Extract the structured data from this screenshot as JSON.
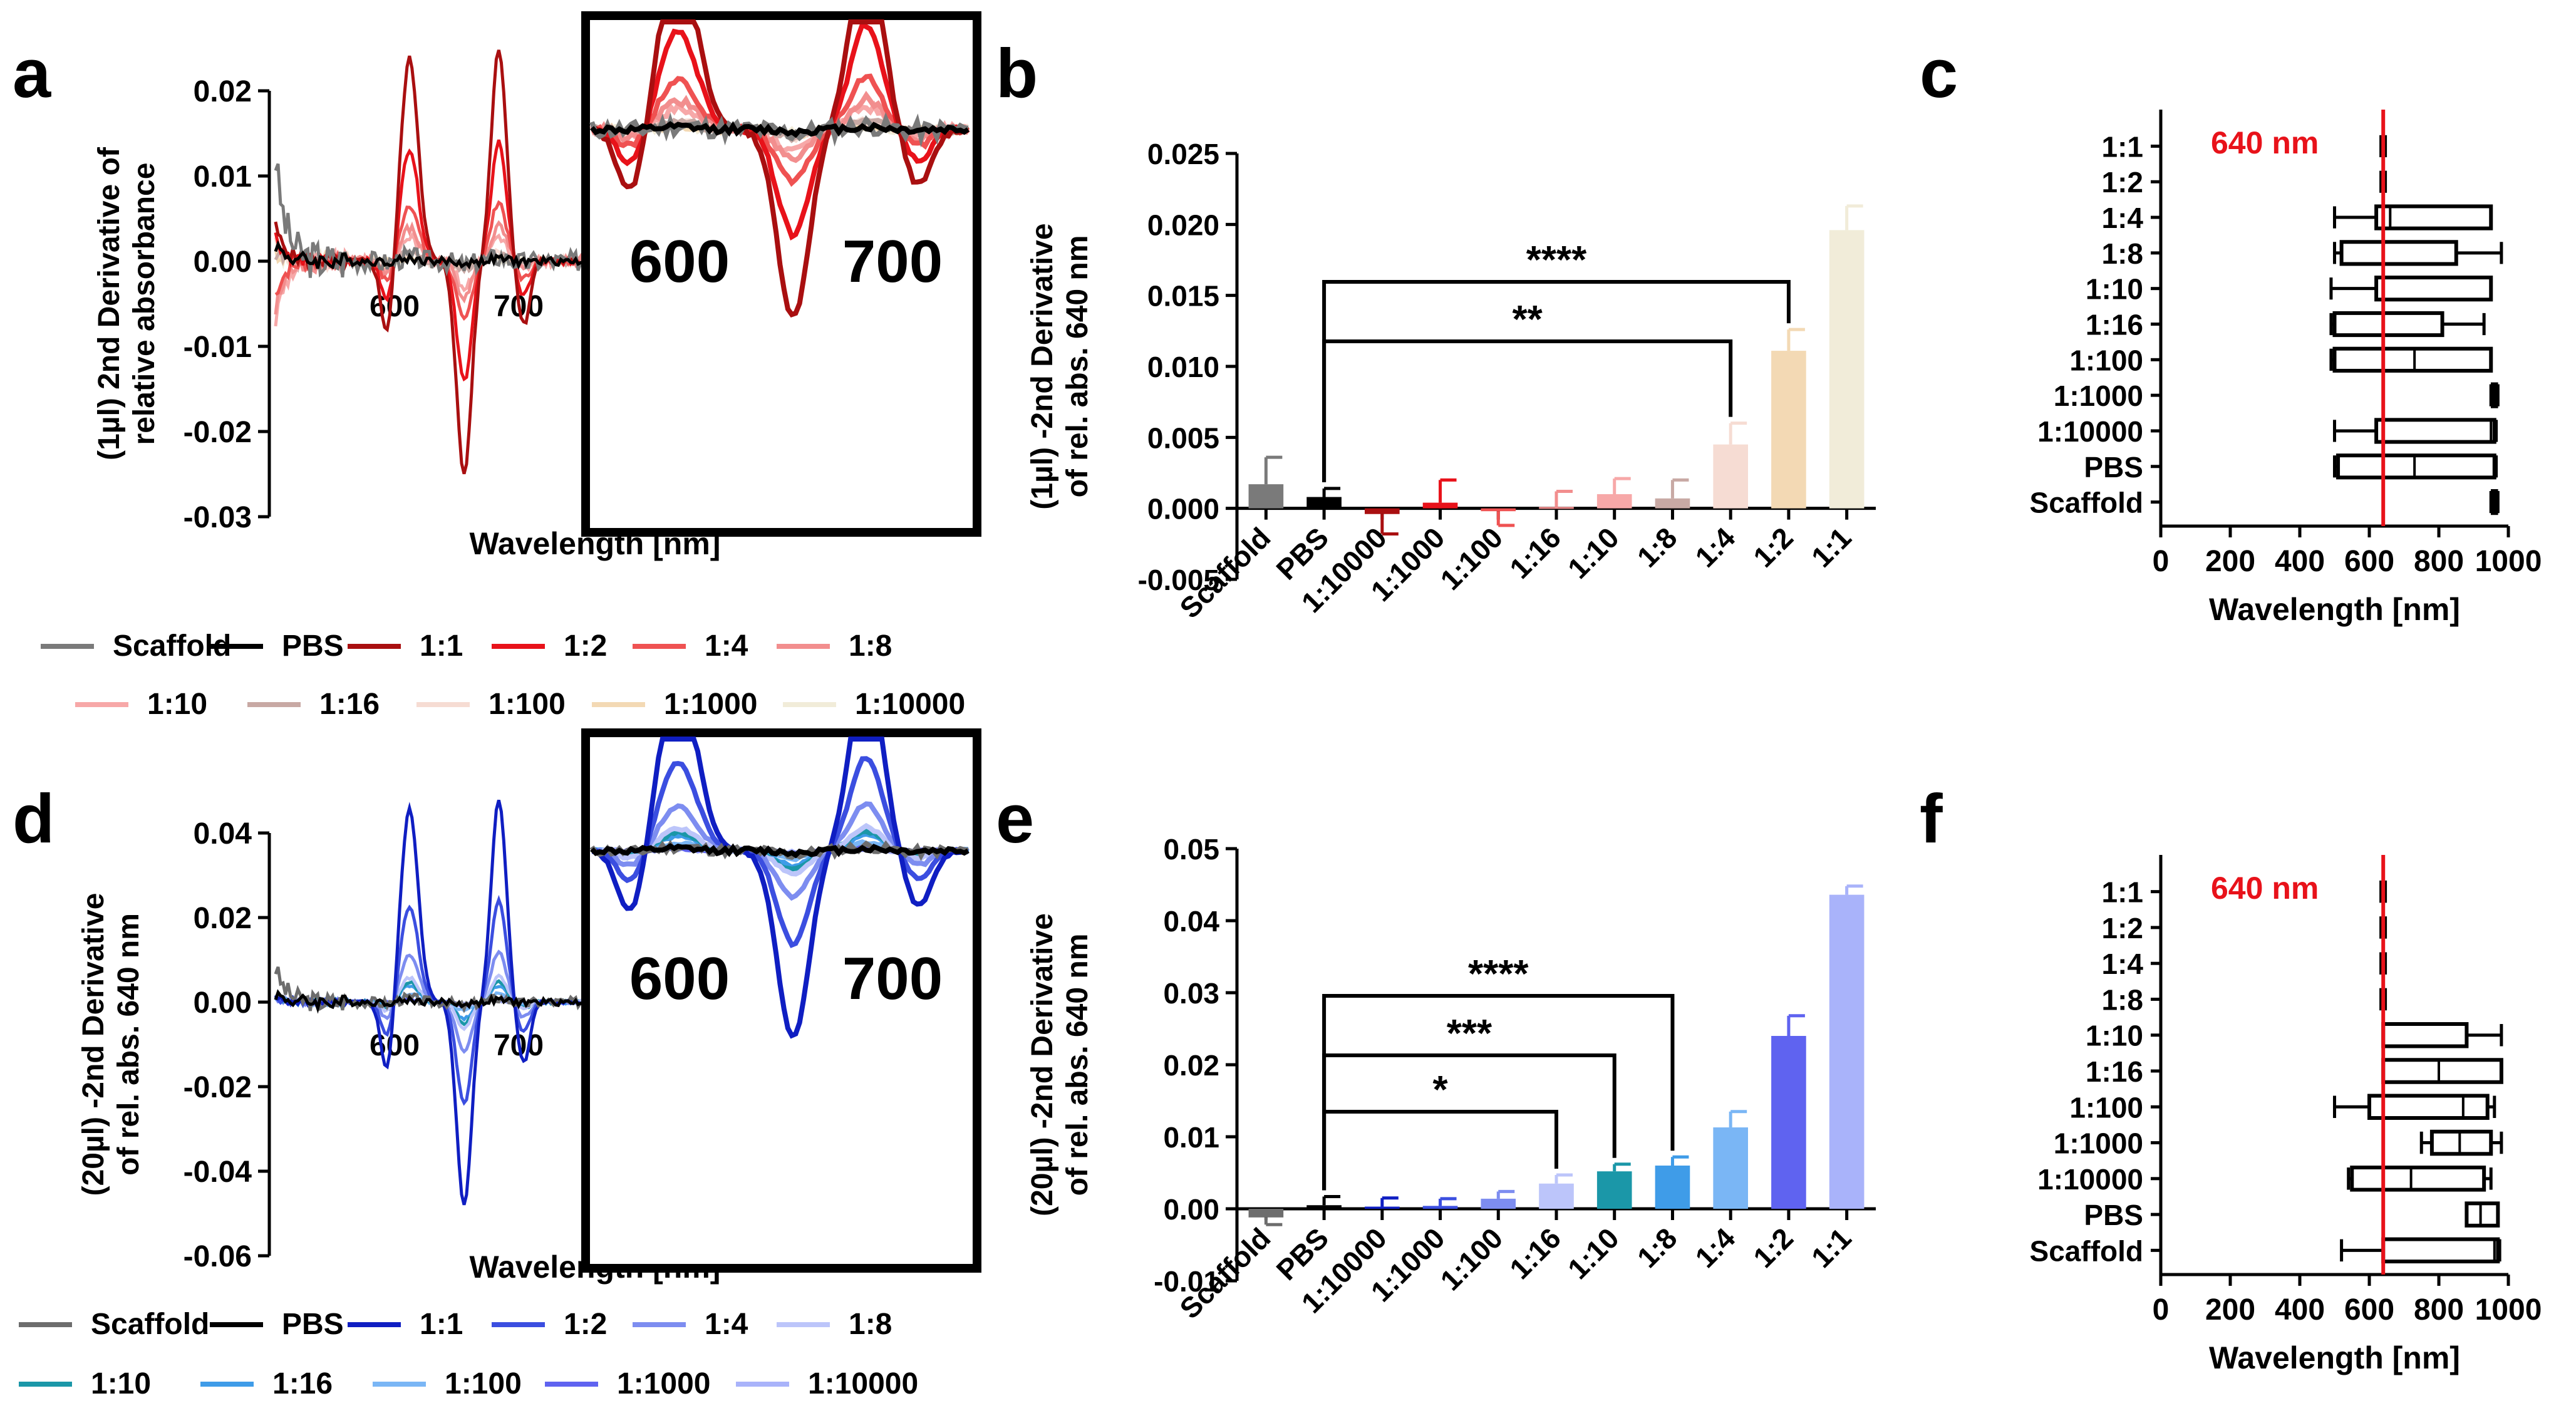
{
  "figure": {
    "panel_labels": [
      "a",
      "b",
      "c",
      "d",
      "e",
      "f"
    ],
    "colors": {
      "red_series": [
        "#7a7a7a",
        "#000000",
        "#a90f10",
        "#e8121a",
        "#ef5252",
        "#f28e8e",
        "#f7a8a8",
        "#c8a9a4",
        "#f6dcd3",
        "#f3d9b4",
        "#f1ecd9"
      ],
      "blue_series": [
        "#6d6d6d",
        "#000000",
        "#0f1ec2",
        "#3b4ee0",
        "#7d8df0",
        "#bcc5fa",
        "#1b97a8",
        "#3f9ce8",
        "#7ab6f5",
        "#5f63f0",
        "#a9b3fa"
      ],
      "marker_640": "#e8121a"
    }
  },
  "chart_data": [
    {
      "panel": "a",
      "type": "line",
      "ylabel": [
        "(1µl) 2nd Derivative of",
        "relative absorbance"
      ],
      "xlabel": "Wavelength [nm]",
      "ylim": [
        -0.03,
        0.02
      ],
      "yticks": [
        "0.02",
        "0.01",
        "0.00",
        "-0.01",
        "-0.02",
        "-0.03"
      ],
      "xticks": [
        "600",
        "700"
      ],
      "inset_xticks": [
        "600",
        "700"
      ],
      "x_range_nm": [
        500,
        750
      ],
      "legend": [
        "Scaffold",
        "PBS",
        "1:1",
        "1:2",
        "1:4",
        "1:8",
        "1:10",
        "1:16",
        "1:100",
        "1:1000",
        "1:10000"
      ],
      "series": [
        {
          "name": "Scaffold",
          "amp": 0.0005,
          "noise": 0.003,
          "left_spike": 0.012
        },
        {
          "name": "PBS",
          "amp": 0.0003,
          "noise": 0.0012,
          "left_spike": 0.002
        },
        {
          "name": "1:1",
          "amp": 0.025,
          "noise": 0.001,
          "left_spike": 0.004
        },
        {
          "name": "1:2",
          "amp": 0.014,
          "noise": 0.001,
          "left_spike": 0.003
        },
        {
          "name": "1:4",
          "amp": 0.007,
          "noise": 0.001,
          "left_spike": -0.004
        },
        {
          "name": "1:8",
          "amp": 0.004,
          "noise": 0.0015,
          "left_spike": -0.006
        },
        {
          "name": "1:10",
          "amp": 0.003,
          "noise": 0.0015,
          "left_spike": -0.007
        },
        {
          "name": "1:16",
          "amp": 0.001,
          "noise": 0.0012,
          "left_spike": 0.001
        },
        {
          "name": "1:100",
          "amp": 0.001,
          "noise": 0.0012,
          "left_spike": 0.002
        },
        {
          "name": "1:1000",
          "amp": 0.0006,
          "noise": 0.0012,
          "left_spike": 0.001
        },
        {
          "name": "1:10000",
          "amp": 0.0004,
          "noise": 0.0012,
          "left_spike": 0.001
        }
      ]
    },
    {
      "panel": "b",
      "type": "bar",
      "ylabel": [
        "(1µl) -2nd Derivative",
        "of rel. abs. 640 nm"
      ],
      "ylim": [
        -0.005,
        0.025
      ],
      "yticks": [
        "0.025",
        "0.020",
        "0.015",
        "0.010",
        "0.005",
        "0.000",
        "-0.005"
      ],
      "categories": [
        "Scaffold",
        "PBS",
        "1:10000",
        "1:1000",
        "1:100",
        "1:16",
        "1:10",
        "1:8",
        "1:4",
        "1:2",
        "1:1"
      ],
      "values": [
        0.0017,
        0.0008,
        -0.0004,
        0.0004,
        -0.0002,
        0.0001,
        0.001,
        0.0007,
        0.0045,
        0.0111,
        0.0196
      ],
      "errors": [
        0.0019,
        0.0006,
        0.0014,
        0.0016,
        0.001,
        0.0011,
        0.0011,
        0.0013,
        0.0015,
        0.0015,
        0.0017
      ],
      "significance": [
        {
          "from": "PBS",
          "to": "1:2",
          "label": "****"
        },
        {
          "from": "PBS",
          "to": "1:4",
          "label": "**"
        }
      ]
    },
    {
      "panel": "c",
      "type": "box",
      "xlabel": "Wavelength [nm]",
      "xlim": [
        0,
        1000
      ],
      "xticks": [
        "0",
        "200",
        "400",
        "600",
        "800",
        "1000"
      ],
      "reference_line": {
        "value": 640,
        "label": "640 nm"
      },
      "categories": [
        "1:1",
        "1:2",
        "1:4",
        "1:8",
        "1:10",
        "1:16",
        "1:100",
        "1:1000",
        "1:10000",
        "PBS",
        "Scaffold"
      ],
      "boxes": [
        {
          "min": 638,
          "q1": 638,
          "median": 640,
          "q3": 642,
          "max": 642
        },
        {
          "min": 638,
          "q1": 638,
          "median": 640,
          "q3": 642,
          "max": 642
        },
        {
          "min": 500,
          "q1": 620,
          "median": 660,
          "q3": 950,
          "max": 950
        },
        {
          "min": 500,
          "q1": 520,
          "median": 850,
          "q3": 850,
          "max": 980
        },
        {
          "min": 490,
          "q1": 620,
          "median": 640,
          "q3": 950,
          "max": 950
        },
        {
          "min": 490,
          "q1": 500,
          "median": 500,
          "q3": 810,
          "max": 930
        },
        {
          "min": 490,
          "q1": 500,
          "median": 730,
          "q3": 950,
          "max": 950
        },
        {
          "min": 950,
          "q1": 955,
          "median": 960,
          "q3": 965,
          "max": 970
        },
        {
          "min": 500,
          "q1": 620,
          "median": 950,
          "q3": 960,
          "max": 965
        },
        {
          "min": 500,
          "q1": 510,
          "median": 730,
          "q3": 960,
          "max": 965
        },
        {
          "min": 950,
          "q1": 955,
          "median": 960,
          "q3": 965,
          "max": 970
        }
      ]
    },
    {
      "panel": "d",
      "type": "line",
      "ylabel": [
        "(20µl) -2nd Derivative",
        "of rel. abs. 640 nm"
      ],
      "xlabel": "Wavelength [nm]",
      "ylim": [
        -0.06,
        0.04
      ],
      "yticks": [
        "0.04",
        "0.02",
        "0.00",
        "-0.02",
        "-0.04",
        "-0.06"
      ],
      "xticks": [
        "600",
        "700"
      ],
      "inset_xticks": [
        "600",
        "700"
      ],
      "x_range_nm": [
        500,
        750
      ],
      "legend": [
        "Scaffold",
        "PBS",
        "1:1",
        "1:2",
        "1:4",
        "1:8",
        "1:10",
        "1:16",
        "1:100",
        "1:1000",
        "1:10000"
      ],
      "series": [
        {
          "name": "Scaffold",
          "amp": 0.001,
          "noise": 0.003,
          "left_spike": 0.008
        },
        {
          "name": "PBS",
          "amp": 0.0005,
          "noise": 0.002,
          "left_spike": 0.002
        },
        {
          "name": "1:1",
          "amp": 0.048,
          "noise": 0.001,
          "left_spike": 0.001
        },
        {
          "name": "1:2",
          "amp": 0.024,
          "noise": 0.001,
          "left_spike": 0.001
        },
        {
          "name": "1:4",
          "amp": 0.012,
          "noise": 0.001,
          "left_spike": 0.001
        },
        {
          "name": "1:8",
          "amp": 0.006,
          "noise": 0.001,
          "left_spike": 0.001
        },
        {
          "name": "1:10",
          "amp": 0.005,
          "noise": 0.001,
          "left_spike": 0.001
        },
        {
          "name": "1:16",
          "amp": 0.004,
          "noise": 0.001,
          "left_spike": 0.001
        },
        {
          "name": "1:100",
          "amp": 0.002,
          "noise": 0.001,
          "left_spike": 0.001
        },
        {
          "name": "1:1000",
          "amp": 0.0008,
          "noise": 0.001,
          "left_spike": 0.001
        },
        {
          "name": "1:10000",
          "amp": 0.0005,
          "noise": 0.001,
          "left_spike": 0.001
        }
      ]
    },
    {
      "panel": "e",
      "type": "bar",
      "ylabel": [
        "(20µl) -2nd Derivative",
        "of rel. abs. 640 nm"
      ],
      "ylim": [
        -0.01,
        0.05
      ],
      "yticks": [
        "0.05",
        "0.04",
        "0.03",
        "0.02",
        "0.01",
        "0.00",
        "-0.01"
      ],
      "categories": [
        "Scaffold",
        "PBS",
        "1:10000",
        "1:1000",
        "1:100",
        "1:16",
        "1:10",
        "1:8",
        "1:4",
        "1:2",
        "1:1"
      ],
      "values": [
        -0.0012,
        0.0005,
        0.0003,
        0.0004,
        0.0014,
        0.0035,
        0.0052,
        0.006,
        0.0113,
        0.024,
        0.0436
      ],
      "errors": [
        0.001,
        0.0012,
        0.0012,
        0.001,
        0.001,
        0.0012,
        0.001,
        0.0012,
        0.0022,
        0.0028,
        0.0012
      ],
      "significance": [
        {
          "from": "PBS",
          "to": "1:8",
          "label": "****"
        },
        {
          "from": "PBS",
          "to": "1:10",
          "label": "***"
        },
        {
          "from": "PBS",
          "to": "1:16",
          "label": "*"
        }
      ]
    },
    {
      "panel": "f",
      "type": "box",
      "xlabel": "Wavelength [nm]",
      "xlim": [
        0,
        1000
      ],
      "xticks": [
        "0",
        "200",
        "400",
        "600",
        "800",
        "1000"
      ],
      "reference_line": {
        "value": 640,
        "label": "640 nm"
      },
      "categories": [
        "1:1",
        "1:2",
        "1:4",
        "1:8",
        "1:10",
        "1:16",
        "1:100",
        "1:1000",
        "1:10000",
        "PBS",
        "Scaffold"
      ],
      "boxes": [
        {
          "min": 638,
          "q1": 638,
          "median": 640,
          "q3": 642,
          "max": 642
        },
        {
          "min": 638,
          "q1": 638,
          "median": 640,
          "q3": 642,
          "max": 642
        },
        {
          "min": 638,
          "q1": 638,
          "median": 640,
          "q3": 642,
          "max": 642
        },
        {
          "min": 638,
          "q1": 638,
          "median": 640,
          "q3": 642,
          "max": 642
        },
        {
          "min": 640,
          "q1": 640,
          "median": 880,
          "q3": 880,
          "max": 980
        },
        {
          "min": 640,
          "q1": 640,
          "median": 800,
          "q3": 980,
          "max": 980
        },
        {
          "min": 500,
          "q1": 600,
          "median": 870,
          "q3": 940,
          "max": 960
        },
        {
          "min": 750,
          "q1": 780,
          "median": 860,
          "q3": 950,
          "max": 980
        },
        {
          "min": 540,
          "q1": 550,
          "median": 720,
          "q3": 930,
          "max": 950
        },
        {
          "min": 880,
          "q1": 880,
          "median": 920,
          "q3": 970,
          "max": 970
        },
        {
          "min": 520,
          "q1": 640,
          "median": 960,
          "q3": 970,
          "max": 975
        }
      ]
    }
  ]
}
